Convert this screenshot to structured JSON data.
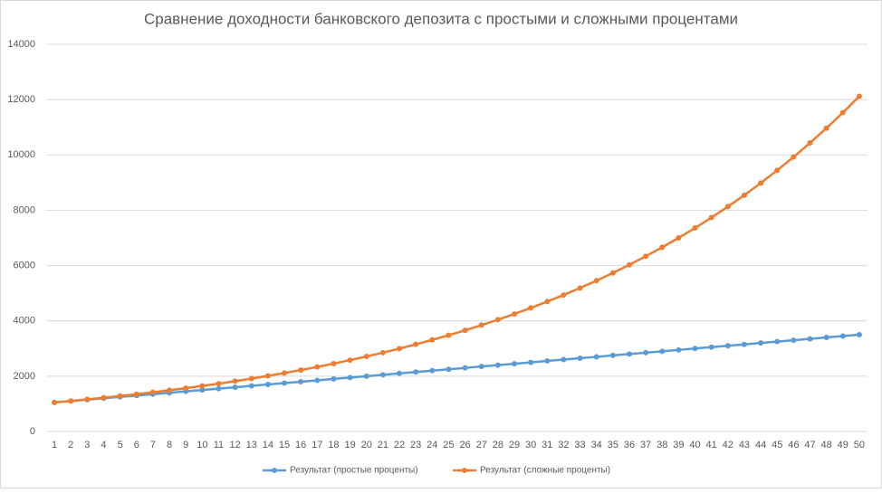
{
  "chart_data": {
    "type": "line",
    "title": "Сравнение доходности банковского депозита с простыми и сложными процентами",
    "categories": [
      1,
      2,
      3,
      4,
      5,
      6,
      7,
      8,
      9,
      10,
      11,
      12,
      13,
      14,
      15,
      16,
      17,
      18,
      19,
      20,
      21,
      22,
      23,
      24,
      25,
      26,
      27,
      28,
      29,
      30,
      31,
      32,
      33,
      34,
      35,
      36,
      37,
      38,
      39,
      40,
      41,
      42,
      43,
      44,
      45,
      46,
      47,
      48,
      49,
      50
    ],
    "series": [
      {
        "name": "Результат (простые проценты)",
        "color": "#5b9bd5",
        "values": [
          1050,
          1100,
          1150,
          1200,
          1250,
          1300,
          1350,
          1400,
          1450,
          1500,
          1550,
          1600,
          1650,
          1700,
          1750,
          1800,
          1850,
          1900,
          1950,
          2000,
          2050,
          2100,
          2150,
          2200,
          2250,
          2300,
          2350,
          2400,
          2450,
          2500,
          2550,
          2600,
          2650,
          2700,
          2750,
          2800,
          2850,
          2900,
          2950,
          3000,
          3050,
          3100,
          3150,
          3200,
          3250,
          3300,
          3350,
          3400,
          3450,
          3500
        ]
      },
      {
        "name": "Результат (сложные проценты)",
        "color": "#ed7d31",
        "values": [
          1051,
          1105,
          1161,
          1221,
          1283,
          1349,
          1418,
          1491,
          1567,
          1647,
          1731,
          1820,
          1913,
          2011,
          2114,
          2222,
          2336,
          2455,
          2581,
          2713,
          2851,
          2997,
          3151,
          3312,
          3481,
          3659,
          3847,
          4043,
          4250,
          4468,
          4696,
          4937,
          5189,
          5455,
          5734,
          6027,
          6335,
          6660,
          7000,
          7358,
          7735,
          8131,
          8547,
          8984,
          9443,
          9927,
          10434,
          10968,
          11529,
          12119
        ]
      }
    ],
    "ylim": [
      0,
      14000
    ],
    "yticks": [
      0,
      2000,
      4000,
      6000,
      8000,
      10000,
      12000,
      14000
    ],
    "grid": true,
    "legend": "bottom"
  }
}
